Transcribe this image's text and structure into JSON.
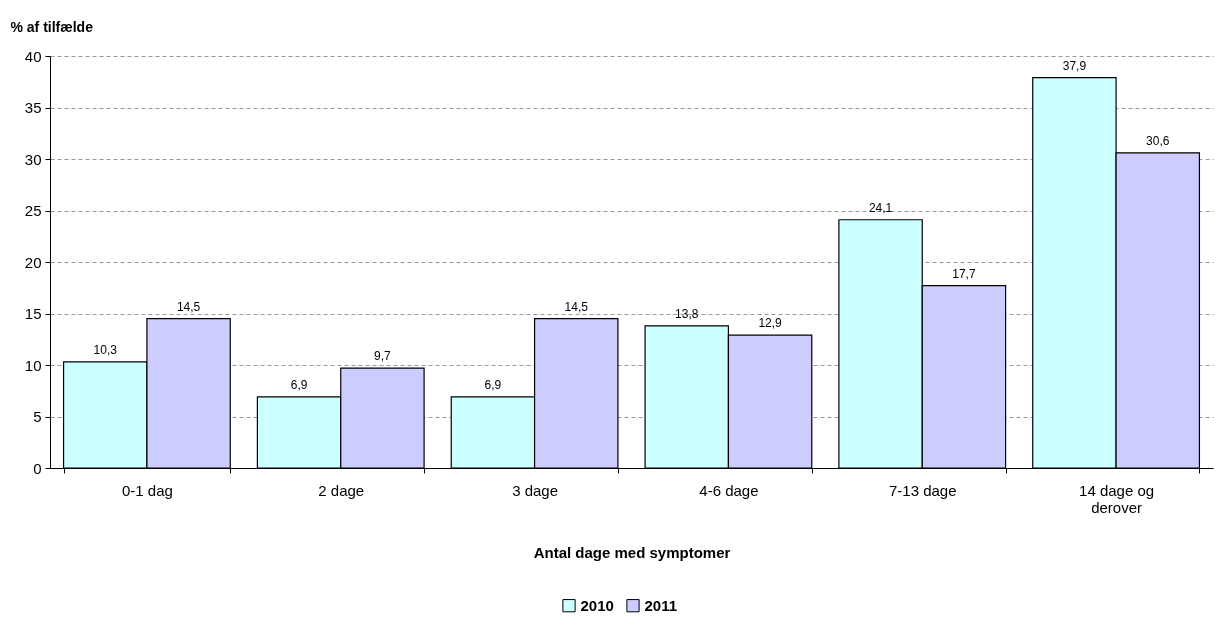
{
  "chart_data": {
    "type": "bar",
    "ylabel": "% af tilfælde",
    "xlabel": "Antal dage med symptomer",
    "categories": [
      "0-1 dag",
      "2 dage",
      "3 dage",
      "4-6 dage",
      "7-13 dage",
      "14 dage og derover"
    ],
    "series": [
      {
        "name": "2010",
        "color": "#ccffff",
        "values": [
          10.3,
          6.9,
          6.9,
          13.8,
          24.1,
          37.9
        ],
        "value_labels": [
          "10,3",
          "6,9",
          "6,9",
          "13,8",
          "24,1",
          "37,9"
        ]
      },
      {
        "name": "2011",
        "color": "#ccccff",
        "values": [
          14.5,
          9.7,
          14.5,
          12.9,
          17.7,
          30.6
        ],
        "value_labels": [
          "14,5",
          "9,7",
          "14,5",
          "12,9",
          "17,7",
          "30,6"
        ]
      }
    ],
    "ylim": [
      0,
      40
    ],
    "yticks": [
      0,
      5,
      10,
      15,
      20,
      25,
      30,
      35,
      40
    ],
    "grid": "y",
    "legend": "bottom"
  }
}
